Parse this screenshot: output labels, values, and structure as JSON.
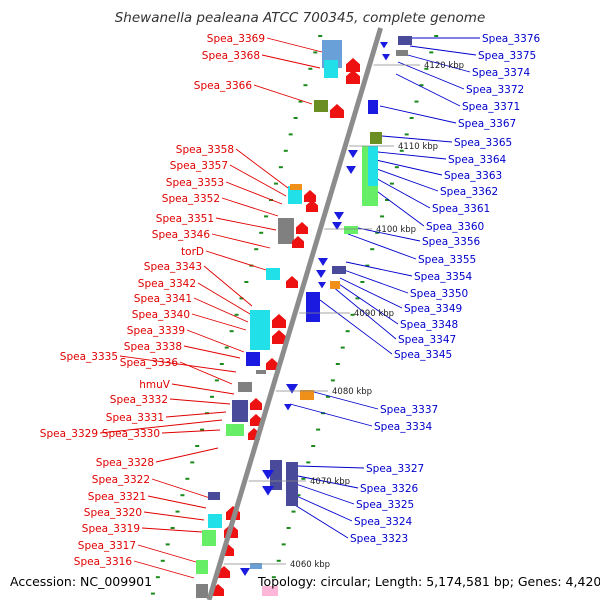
{
  "title": "Shewanella pealeana ATCC 700345, complete genome",
  "footer": {
    "accession": "Accession: NC_009901",
    "summary": "Topology: circular; Length: 5,174,581 bp; Genes: 4,420"
  },
  "colors": {
    "left_label": "#e00000",
    "right_label": "#0000cc",
    "backbone": "#8c8c8c",
    "tick": "#1a8a1a",
    "red": "#ee1111",
    "blue": "#1a1ae0",
    "cyan": "#22e0e8",
    "green": "#66ee66",
    "navy": "#4a4a9a",
    "grey": "#808080",
    "olive": "#6b8e23",
    "orange": "#f09018",
    "steel": "#6aa0d8",
    "pink": "#ffb6d9"
  },
  "scale_markers": [
    "4120 kbp",
    "4110 kbp",
    "4100 kbp",
    "4090 kbp",
    "4080 kbp",
    "4070 kbp",
    "4060 kbp"
  ],
  "left_labels": [
    "Spea_3369",
    "Spea_3368",
    "Spea_3366",
    "Spea_3358",
    "Spea_3357",
    "Spea_3353",
    "Spea_3352",
    "Spea_3351",
    "Spea_3346",
    "torD",
    "Spea_3343",
    "Spea_3342",
    "Spea_3341",
    "Spea_3340",
    "Spea_3339",
    "Spea_3338",
    "Spea_3335",
    "Spea_3336",
    "hmuV",
    "Spea_3332",
    "Spea_3331",
    "Spea_3329",
    "Spea_3330",
    "Spea_3328",
    "Spea_3322",
    "Spea_3321",
    "Spea_3320",
    "Spea_3319",
    "Spea_3317",
    "Spea_3316"
  ],
  "right_labels": [
    "Spea_3376",
    "Spea_3375",
    "Spea_3374",
    "Spea_3372",
    "Spea_3371",
    "Spea_3367",
    "Spea_3365",
    "Spea_3364",
    "Spea_3363",
    "Spea_3362",
    "Spea_3361",
    "Spea_3360",
    "Spea_3356",
    "Spea_3355",
    "Spea_3354",
    "Spea_3350",
    "Spea_3349",
    "Spea_3348",
    "Spea_3347",
    "Spea_3345",
    "Spea_3337",
    "Spea_3334",
    "Spea_3327",
    "Spea_3326",
    "Spea_3325",
    "Spea_3324",
    "Spea_3323"
  ]
}
